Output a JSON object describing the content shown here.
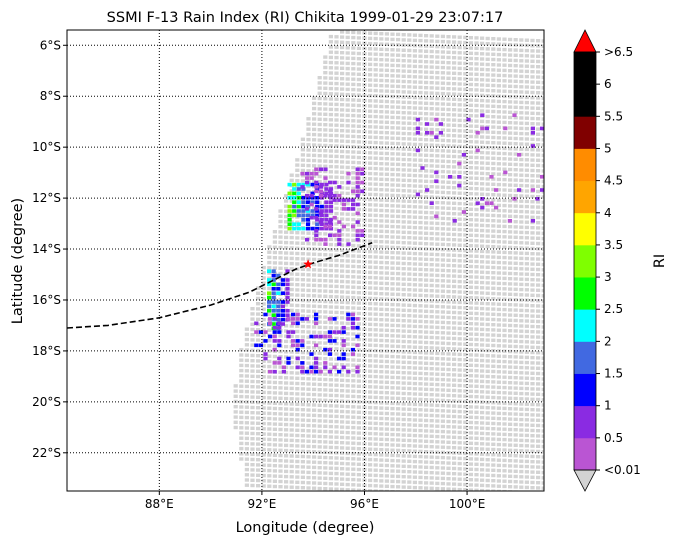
{
  "chart_data": {
    "type": "scatter",
    "title": "SSMI F-13 Rain Index (RI) Chikita 1999-01-29 23:07:17",
    "xlabel": "Longitude (degree)",
    "ylabel": "Latitude (degree)",
    "xlim": [
      84.4,
      103.0
    ],
    "ylim": [
      -23.5,
      -5.4
    ],
    "grid": true,
    "x_ticks": [
      88,
      92,
      96,
      100
    ],
    "x_tick_labels": [
      "88°E",
      "92°E",
      "96°E",
      "100°E"
    ],
    "y_ticks": [
      -6,
      -8,
      -10,
      -12,
      -14,
      -16,
      -18,
      -20,
      -22
    ],
    "y_tick_labels": [
      "6°S",
      "8°S",
      "10°S",
      "12°S",
      "14°S",
      "16°S",
      "18°S",
      "20°S",
      "22°S"
    ],
    "swath_color": "#d3d3d3",
    "colorbar": {
      "label": "RI",
      "boundaries": [
        0.01,
        0.5,
        1,
        1.5,
        2,
        2.5,
        3,
        3.5,
        4,
        4.5,
        5,
        5.5,
        6,
        6.5
      ],
      "tick_labels": [
        "<0.01",
        "0.5",
        "1",
        "1.5",
        "2",
        "2.5",
        "3",
        "3.5",
        "4",
        "4.5",
        "5",
        "5.5",
        "6",
        ">6.5"
      ],
      "colors": [
        "#ba55d3",
        "#8a2be2",
        "#0000ff",
        "#4169e1",
        "#00ffff",
        "#00ff00",
        "#7fff00",
        "#ffff00",
        "#ffa500",
        "#ff8c00",
        "#800000",
        "#000000",
        "#000000"
      ],
      "under_color": "#d3d3d3",
      "over_color": "#ff0000"
    },
    "track": {
      "name": "",
      "lon": [
        84.4,
        86.0,
        88.0,
        90.0,
        91.5,
        92.5,
        93.3,
        94.0,
        95.0,
        96.3
      ],
      "lat": [
        -17.1,
        -17.0,
        -16.7,
        -16.2,
        -15.7,
        -15.2,
        -14.8,
        -14.55,
        -14.25,
        -13.75
      ]
    },
    "storm_center": {
      "lon": 93.8,
      "lat": -14.6
    },
    "rain_clusters": [
      {
        "lon": [
          93.0,
          94.7
        ],
        "lat": [
          -13.2,
          -11.4
        ],
        "ri": [
          0.5,
          3.2
        ]
      },
      {
        "lon": [
          92.2,
          93.0
        ],
        "lat": [
          -17.2,
          -14.8
        ],
        "ri": [
          0.5,
          3.2
        ]
      },
      {
        "lon": [
          91.7,
          95.8
        ],
        "lat": [
          -18.8,
          -16.5
        ],
        "ri": [
          0.01,
          1.5
        ]
      },
      {
        "lon": [
          93.5,
          96.0
        ],
        "lat": [
          -13.8,
          -10.8
        ],
        "ri": [
          0.01,
          1.0
        ]
      },
      {
        "lon": [
          98.0,
          102.9
        ],
        "lat": [
          -13.0,
          -8.5
        ],
        "ri": [
          0.01,
          1.0
        ]
      }
    ]
  }
}
